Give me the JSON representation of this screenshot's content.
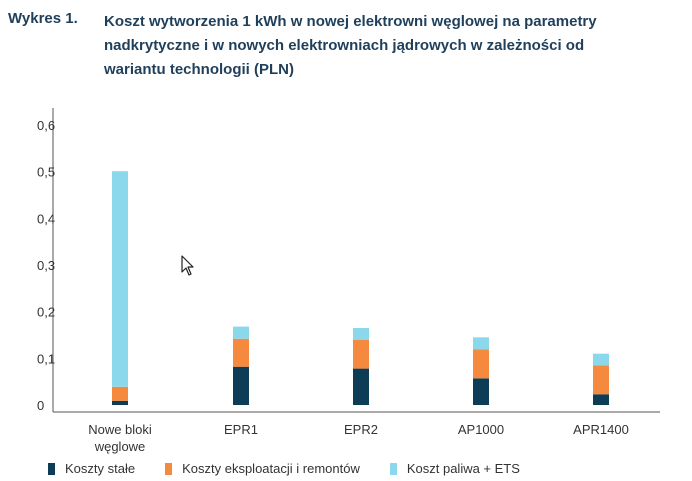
{
  "header": {
    "label": "Wykres 1.",
    "title": "Koszt wytworzenia 1 kWh w nowej elektrowni węglowej na parametry nadkrytyczne i w nowych elektrowniach jądrowych w zależności od wariantu technologii (PLN)"
  },
  "chart_data": {
    "type": "bar",
    "stacked": true,
    "categories": [
      "Nowe bloki węglowe",
      "EPR1",
      "EPR2",
      "AP1000",
      "APR1400"
    ],
    "series": [
      {
        "name": "Koszty stałe",
        "color": "#0d3d56",
        "values": [
          0.009,
          0.082,
          0.078,
          0.057,
          0.023
        ]
      },
      {
        "name": "Koszty eksploatacji i remontów",
        "color": "#f58a3f",
        "values": [
          0.03,
          0.06,
          0.062,
          0.062,
          0.062
        ]
      },
      {
        "name": "Koszt paliwa + ETS",
        "color": "#8bd8ec",
        "values": [
          0.462,
          0.026,
          0.025,
          0.026,
          0.025
        ]
      }
    ],
    "yticks": [
      "0",
      "0,1",
      "0,2",
      "0,3",
      "0,4",
      "0,5",
      "0,6"
    ],
    "ylim": [
      0,
      0.6
    ],
    "xlabel": "",
    "ylabel": "",
    "legend_position": "bottom"
  }
}
